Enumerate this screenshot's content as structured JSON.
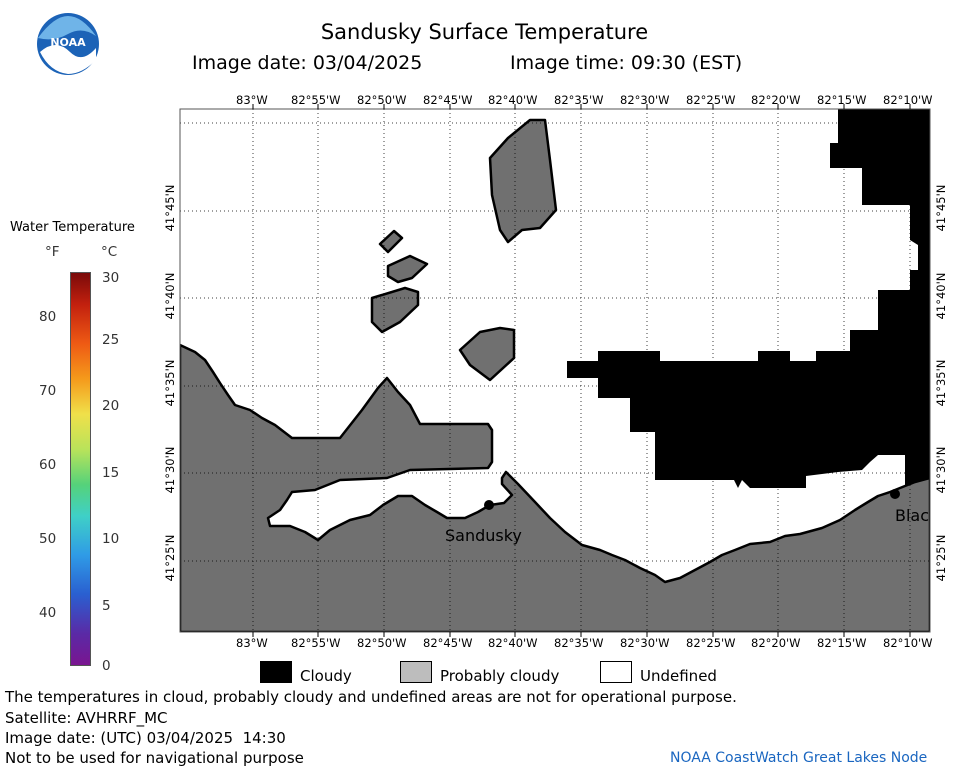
{
  "header": {
    "title": "Sandusky Surface Temperature",
    "image_date_label": "Image date: 03/04/2025",
    "image_time_label": "Image time: 09:30 (EST)",
    "logo_text": "NOAA"
  },
  "colorbar": {
    "title": "Water Temperature",
    "unit_f": "°F",
    "unit_c": "°C",
    "f_ticks": [
      "40",
      "50",
      "60",
      "70",
      "80"
    ],
    "c_ticks": [
      "0",
      "5",
      "10",
      "15",
      "20",
      "25",
      "30"
    ]
  },
  "map": {
    "lon_labels": [
      "83°W",
      "82°55'W",
      "82°50'W",
      "82°45'W",
      "82°40'W",
      "82°35'W",
      "82°30'W",
      "82°25'W",
      "82°20'W",
      "82°15'W",
      "82°10'W"
    ],
    "lat_labels": [
      "41°45'N",
      "41°40'N",
      "41°35'N",
      "41°30'N",
      "41°25'N"
    ],
    "places": [
      "Sandusky",
      "Blac"
    ],
    "colors": {
      "land": "#707070",
      "cloud": "#000000",
      "water": "#ffffff"
    }
  },
  "legend": {
    "items": [
      {
        "label": "Cloudy",
        "color": "#000000"
      },
      {
        "label": "Probably cloudy",
        "color": "#bdbdbd"
      },
      {
        "label": "Undefined",
        "color": "#ffffff"
      }
    ]
  },
  "footer": {
    "disclaimer": "The temperatures in cloud, probably cloudy and undefined areas are not for operational purpose.",
    "satellite": "Satellite: AVHRRF_MC",
    "utc_date": "Image date: (UTC) 03/04/2025  14:30",
    "nav_note": "Not to be used for navigational purpose",
    "credit": "NOAA CoastWatch Great Lakes Node"
  }
}
